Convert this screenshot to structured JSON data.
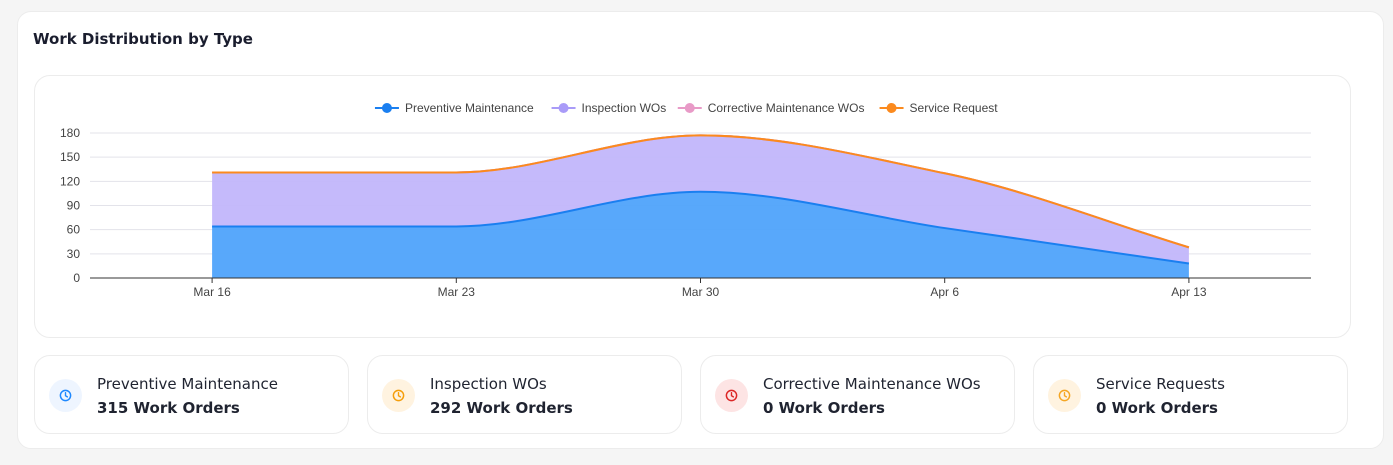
{
  "title": "Work Distribution by Type",
  "chart_data": {
    "type": "area",
    "stacked": true,
    "categories": [
      "Mar 16",
      "Mar 23",
      "Mar 30",
      "Apr 6",
      "Apr 13"
    ],
    "ylim": [
      0,
      180
    ],
    "yticks": [
      0,
      30,
      60,
      90,
      120,
      150,
      180
    ],
    "grid": true,
    "legend_position": "top-center",
    "series": [
      {
        "name": "Preventive Maintenance",
        "color": "#1a7ff0",
        "fill": "#4fa3fb",
        "values": [
          64,
          64,
          107,
          62,
          18
        ]
      },
      {
        "name": "Inspection WOs",
        "color": "#a99bf8",
        "fill": "#c2b6fb",
        "values": [
          67,
          67,
          70,
          68,
          20
        ]
      },
      {
        "name": "Corrective Maintenance WOs",
        "color": "#e89ac7",
        "fill": "#f3c6df",
        "values": [
          0,
          0,
          0,
          0,
          0
        ]
      },
      {
        "name": "Service Request",
        "color": "#fb8a1e",
        "fill": "#fdd3a8",
        "values": [
          0,
          0,
          0,
          0,
          0
        ]
      }
    ]
  },
  "stats": [
    {
      "label": "Preventive Maintenance",
      "value": "315 Work Orders",
      "icon": "clock-icon",
      "color": "#1e88ff",
      "bg": "#eef5ff"
    },
    {
      "label": "Inspection WOs",
      "value": "292 Work Orders",
      "icon": "clock-icon",
      "color": "#f59e0b",
      "bg": "#fff3e0"
    },
    {
      "label": "Corrective Maintenance WOs",
      "value": "0 Work Orders",
      "icon": "clock-icon",
      "color": "#dc2626",
      "bg": "#fde4e4"
    },
    {
      "label": "Service Requests",
      "value": "0 Work Orders",
      "icon": "clock-icon",
      "color": "#f5a623",
      "bg": "#fff3e0"
    }
  ]
}
